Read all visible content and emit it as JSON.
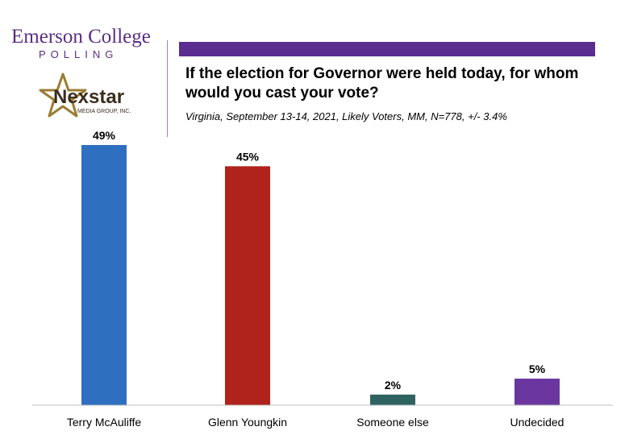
{
  "header": {
    "brand_name": "Emerson College",
    "brand_sub": "POLLING",
    "partner_logo_text": "Nexstar",
    "partner_logo_subtext": "MEDIA GROUP, INC."
  },
  "colors": {
    "brand_purple": "#5b2d91",
    "logo_gold": "#9a7d33",
    "logo_dark": "#3b2d1e",
    "axis": "#bfbfbf"
  },
  "chart_data": {
    "type": "bar",
    "title": "If the election for Governor were held today, for whom would you cast your vote?",
    "subtitle": "Virginia, September 13-14, 2021, Likely Voters, MM, N=778, +/- 3.4%",
    "categories": [
      "Terry McAuliffe",
      "Glenn Youngkin",
      "Someone else",
      "Undecided"
    ],
    "values": [
      49,
      45,
      2,
      5
    ],
    "value_labels": [
      "49%",
      "45%",
      "2%",
      "5%"
    ],
    "colors": [
      "#2e6fc0",
      "#b0231c",
      "#2e6361",
      "#6b36a0"
    ],
    "ylim": [
      0,
      49
    ],
    "xlabel": "",
    "ylabel": "",
    "grid": false
  }
}
